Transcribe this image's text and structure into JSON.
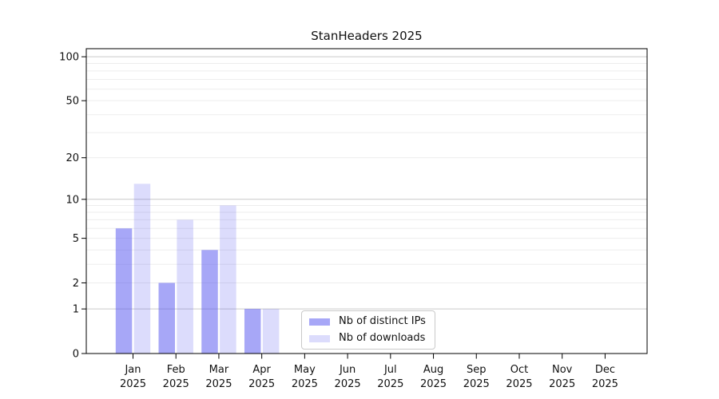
{
  "chart_data": {
    "type": "bar",
    "title": "StanHeaders 2025",
    "categories": [
      "Jan",
      "Feb",
      "Mar",
      "Apr",
      "May",
      "Jun",
      "Jul",
      "Aug",
      "Sep",
      "Oct",
      "Nov",
      "Dec"
    ],
    "category_year": "2025",
    "series": [
      {
        "name": "Nb of distinct IPs",
        "color": "rgba(80,80,240,0.50)",
        "values": [
          6,
          2,
          4,
          1,
          0,
          0,
          0,
          0,
          0,
          0,
          0,
          0
        ]
      },
      {
        "name": "Nb of downloads",
        "color": "rgba(80,80,240,0.20)",
        "values": [
          13,
          7,
          9,
          1,
          0,
          0,
          0,
          0,
          0,
          0,
          0,
          0
        ]
      }
    ],
    "yscale": "log1p",
    "ylim": [
      0,
      113.5
    ],
    "yticks": [
      0,
      1,
      2,
      5,
      10,
      20,
      50,
      100
    ],
    "major_gridlines": [
      1,
      10,
      100
    ],
    "minor_gridlines": [
      2,
      3,
      4,
      5,
      6,
      7,
      8,
      9,
      20,
      30,
      40,
      50,
      60,
      70,
      80,
      90
    ],
    "grid": true,
    "legend_position": "lower-center",
    "colors": {
      "axis": "#000000",
      "text": "#111111",
      "major_grid": "#c9c9c9",
      "minor_grid": "#ededed"
    }
  }
}
